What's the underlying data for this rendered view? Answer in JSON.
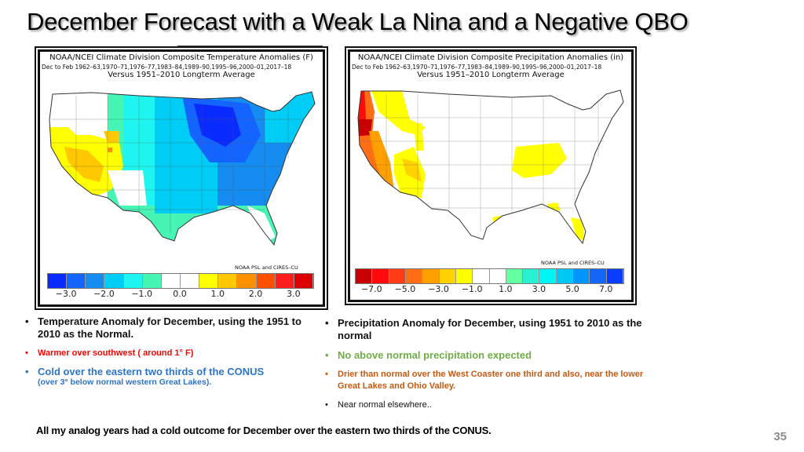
{
  "slide": {
    "title": "December Forecast with a Weak La Nina and a Negative QBO",
    "page_number": "35",
    "footer_note": "All my analog years had a cold outcome for December over the eastern two thirds of the CONUS."
  },
  "temperature_map": {
    "header_line1": "NOAA/NCEI Climate Division Composite Temperature Anomalies (F)",
    "header_line2": "Dec to Feb  1962–63,1970–71,1976–77,1983–84,1989–90,1995–96,2000–01,2017–18",
    "header_line3": "Versus 1951–2010 Longterm Average",
    "credit": "NOAA PSL and CIRES–CU",
    "legend_colors": [
      "#0a2bff",
      "#1464ff",
      "#148cf0",
      "#00cdf5",
      "#1ef5f0",
      "#46f5b4",
      "#ffffff",
      "#ffffff",
      "#ffff00",
      "#ffc800",
      "#ff9100",
      "#ff5000",
      "#ff1e1e",
      "#dc0000"
    ],
    "legend_labels": [
      "−3.0",
      "−2.0",
      "−1.0",
      "0.0",
      "1.0",
      "2.0",
      "3.0"
    ]
  },
  "precipitation_map": {
    "header_line1": "NOAA/NCEI Climate Division Composite Precipitation Anomalies (in)",
    "header_line2": "Dec to Feb  1962–63,1970–71,1976–77,1983–84,1989–90,1995–96,2000–01,2017–18",
    "header_line3": "Versus 1951–2010 Longterm Average",
    "credit": "NOAA PSL and CIRES–CU",
    "legend_colors": [
      "#c80000",
      "#ff0a0a",
      "#ff3c14",
      "#ff6e14",
      "#ffa000",
      "#ffd200",
      "#ffff00",
      "#ffffff",
      "#ffffff",
      "#64ffa0",
      "#28f0d2",
      "#00f5f5",
      "#00c8f5",
      "#0096ff",
      "#1464f5",
      "#0a3cff"
    ],
    "legend_labels": [
      "−7.0",
      "−5.0",
      "−3.0",
      "−1.0",
      "1.0",
      "3.0",
      "5.0",
      "7.0"
    ]
  },
  "left_bullets": {
    "b1": "Temperature Anomaly for December, using the 1951 to 2010 as the Normal.",
    "b2": "Warmer over southwest ( around 1° F)",
    "b3_main": "Cold over the eastern two thirds of the CONUS",
    "b3_sub": "(over 3° below normal  western Great Lakes)."
  },
  "right_bullets": {
    "b1": "Precipitation Anomaly for December,  using 1951 to 2010 as the normal",
    "b2": "No above normal precipitation expected",
    "b3": "Drier than normal over the West Coaster one third and also, near the lower Great Lakes and Ohio Valley.",
    "b4": "Near normal elsewhere.."
  },
  "colors": {
    "red_text": "#ff0000",
    "blue_text": "#2e75c6",
    "green_text": "#70ad47",
    "orange_text": "#c55a11",
    "page_number": "#8c8c8c"
  }
}
